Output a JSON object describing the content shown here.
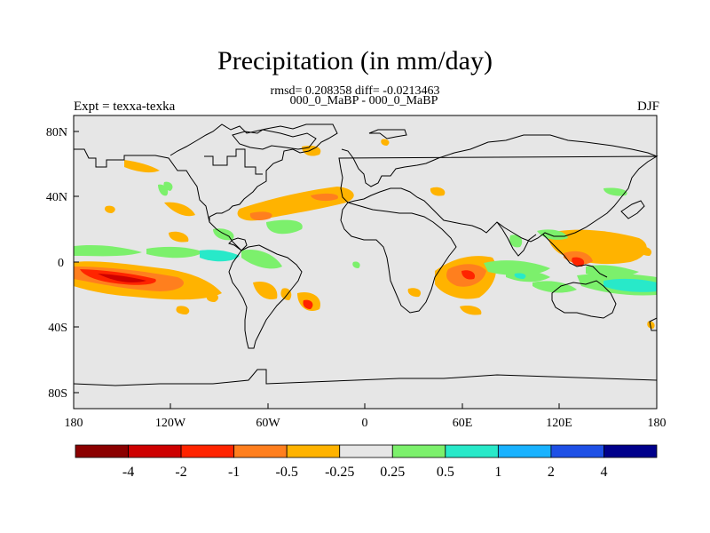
{
  "title": "Precipitation (in mm/day)",
  "stats_line": "rmsd= 0.208358 diff= -0.0213463",
  "comparison": "000_0_MaBP - 000_0_MaBP",
  "expt": "Expt = texxa-texka",
  "season": "DJF",
  "map": {
    "background": "#e6e6e6",
    "lon_ticks": [
      "180",
      "120W",
      "60W",
      "0",
      "60E",
      "120E",
      "180"
    ],
    "lat_ticks": [
      "80N",
      "40N",
      "0",
      "40S",
      "80S"
    ]
  },
  "colorbar": {
    "colors": [
      "#8b0000",
      "#cd0000",
      "#ff2400",
      "#ff7f1e",
      "#ffb300",
      "#e6e6e6",
      "#7cf06c",
      "#28e9c9",
      "#19b2ff",
      "#1e50e6",
      "#00008b"
    ],
    "labels": [
      "-4",
      "-2",
      "-1",
      "-0.5",
      "-0.25",
      "0.25",
      "0.5",
      "1",
      "2",
      "4"
    ]
  }
}
